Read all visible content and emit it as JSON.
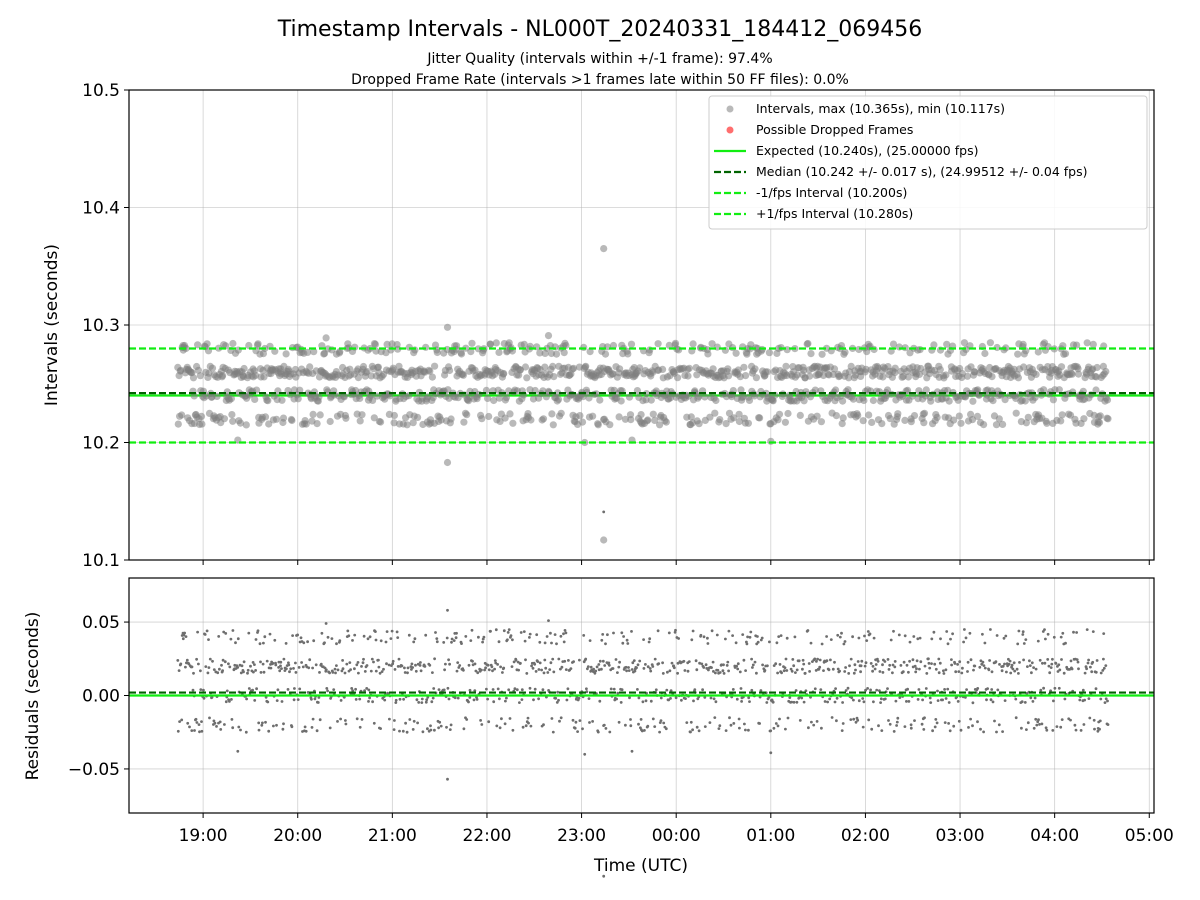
{
  "chart_data": {
    "type": "scatter",
    "title": "Timestamp Intervals - NL000T_20240331_184412_069456",
    "subtitle_lines": [
      "Jitter Quality (intervals within +/-1 frame): 97.4%",
      "Dropped Frame Rate (intervals >1 frames late within 50 FF files): 0.0%"
    ],
    "grid": true,
    "legend_placement": "top-right",
    "x_axis": {
      "label": "Time (UTC)",
      "start_time": "18:13",
      "end_time": "05:03",
      "ticks": [
        "19:00",
        "20:00",
        "21:00",
        "22:00",
        "23:00",
        "00:00",
        "01:00",
        "02:00",
        "03:00",
        "04:00",
        "05:00"
      ],
      "data_start": "18:44",
      "data_end": "04:34"
    },
    "panels": [
      {
        "id": "intervals",
        "ylabel": "Intervals (seconds)",
        "ylim": [
          10.1,
          10.5
        ],
        "yticks": [
          "10.1",
          "10.2",
          "10.3",
          "10.4",
          "10.5"
        ],
        "series": [
          {
            "name": "Intervals, max (10.365s), min (10.117s)",
            "marker": "circle",
            "color": "#808080",
            "bands": [
              10.22,
              10.24,
              10.26,
              10.28
            ],
            "max": 10.365,
            "min": 10.117,
            "outliers": [
              {
                "time": "23:14",
                "value": 10.365
              },
              {
                "time": "23:14",
                "value": 10.117
              },
              {
                "time": "21:35",
                "value": 10.298
              },
              {
                "time": "21:35",
                "value": 10.183
              },
              {
                "time": "20:18",
                "value": 10.289
              },
              {
                "time": "22:39",
                "value": 10.291
              },
              {
                "time": "23:02",
                "value": 10.2
              },
              {
                "time": "01:00",
                "value": 10.201
              },
              {
                "time": "19:22",
                "value": 10.202
              },
              {
                "time": "23:32",
                "value": 10.202
              }
            ]
          },
          {
            "name": "Possible Dropped Frames",
            "marker": "circle",
            "color": "#ff5555",
            "values": []
          }
        ],
        "reference_lines": [
          {
            "name": "Expected (10.240s), (25.00000 fps)",
            "value": 10.24,
            "style": "solid",
            "color": "#11ee11"
          },
          {
            "name": "Median (10.242 +/- 0.017 s), (24.99512 +/- 0.04 fps)",
            "value": 10.242,
            "style": "dashed",
            "color": "#006400"
          },
          {
            "name": "-1/fps Interval (10.200s)",
            "value": 10.2,
            "style": "dashed",
            "color": "#11ee11"
          },
          {
            "name": "+1/fps Interval (10.280s)",
            "value": 10.28,
            "style": "dashed",
            "color": "#11ee11"
          }
        ]
      },
      {
        "id": "residuals",
        "ylabel": "Residuals (seconds)",
        "ylim": [
          -0.08,
          0.08
        ],
        "yticks": [
          "−0.05",
          "0.00",
          "0.05"
        ],
        "ytick_values": [
          -0.05,
          0.0,
          0.05
        ],
        "series": [
          {
            "marker": "point",
            "color": "#6e6e6e",
            "bands": [
              -0.02,
              0.0,
              0.02,
              0.04
            ]
          }
        ],
        "reference_lines": [
          {
            "value": 0.0,
            "style": "solid",
            "color": "#11ee11"
          },
          {
            "value": 0.002,
            "style": "dashed",
            "color": "#006400"
          }
        ]
      }
    ]
  }
}
